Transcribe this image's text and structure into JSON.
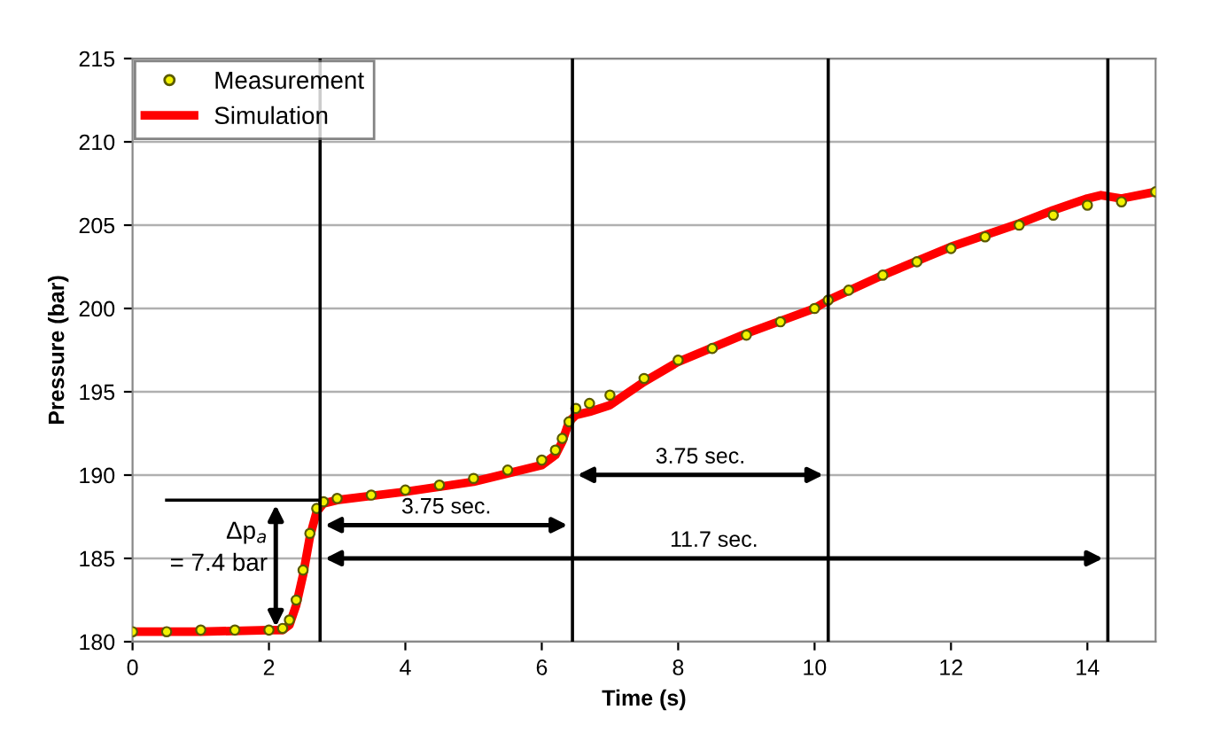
{
  "chart_data": {
    "type": "line",
    "xlabel": "Time (s)",
    "ylabel": "Pressure (bar)",
    "xlim": [
      0,
      15
    ],
    "xticks": [
      0,
      2,
      4,
      6,
      8,
      10,
      12,
      14
    ],
    "ylim": [
      180,
      215
    ],
    "yticks": [
      180,
      185,
      190,
      195,
      200,
      205,
      210,
      215
    ],
    "grid": "y",
    "legend": "top left",
    "series": [
      {
        "name": "Measurement",
        "type": "scatter",
        "marker": "circle",
        "color": "#f2f200",
        "x": [
          0,
          0.5,
          1,
          1.5,
          2,
          2.2,
          2.3,
          2.4,
          2.5,
          2.6,
          2.7,
          2.8,
          3,
          3.5,
          4,
          4.5,
          5,
          5.5,
          6,
          6.2,
          6.3,
          6.4,
          6.5,
          6.7,
          7,
          7.5,
          8,
          8.5,
          9,
          9.5,
          10,
          10.2,
          10.5,
          11,
          11.5,
          12,
          12.5,
          13,
          13.5,
          14,
          14.5,
          15
        ],
        "values": [
          180.6,
          180.6,
          180.7,
          180.7,
          180.7,
          180.8,
          181.3,
          182.5,
          184.3,
          186.5,
          188.0,
          188.4,
          188.6,
          188.8,
          189.1,
          189.4,
          189.8,
          190.3,
          190.9,
          191.5,
          192.2,
          193.2,
          194.0,
          194.3,
          194.8,
          195.8,
          196.9,
          197.6,
          198.4,
          199.2,
          200.0,
          200.5,
          201.1,
          202.0,
          202.8,
          203.6,
          204.3,
          205.0,
          205.6,
          206.2,
          206.4,
          207.0
        ]
      },
      {
        "name": "Simulation",
        "line_style": "solid",
        "marker": "none",
        "color": "#ff0000",
        "x": [
          0,
          1,
          2,
          2.2,
          2.3,
          2.4,
          2.5,
          2.6,
          2.7,
          2.8,
          3,
          4,
          5,
          6,
          6.2,
          6.3,
          6.4,
          6.5,
          6.7,
          7,
          7.5,
          8,
          9,
          10,
          10.2,
          11,
          12,
          13,
          13.5,
          14,
          14.2,
          14.5,
          15
        ],
        "values": [
          180.6,
          180.6,
          180.7,
          180.7,
          181.0,
          182.2,
          184.0,
          186.3,
          187.8,
          188.3,
          188.5,
          189.0,
          189.6,
          190.6,
          191.2,
          192.0,
          193.2,
          193.6,
          193.8,
          194.2,
          195.6,
          196.8,
          198.5,
          200.0,
          200.5,
          202.0,
          203.7,
          205.1,
          205.9,
          206.6,
          206.8,
          206.6,
          207.0
        ]
      }
    ],
    "ref_lines": [
      {
        "axis": "x",
        "value": 2.75,
        "color": "#000000"
      },
      {
        "axis": "x",
        "value": 6.45,
        "color": "#000000"
      },
      {
        "axis": "x",
        "value": 10.2,
        "color": "#000000"
      },
      {
        "axis": "x",
        "value": 14.3,
        "color": "#000000"
      },
      {
        "axis": "y",
        "value": 188.5,
        "color": "#000000"
      }
    ],
    "annotations": [
      "Δp$_{a}$\n= 7.4 bar",
      "3.75 sec.",
      "3.75 sec.",
      "11.7 sec."
    ]
  }
}
